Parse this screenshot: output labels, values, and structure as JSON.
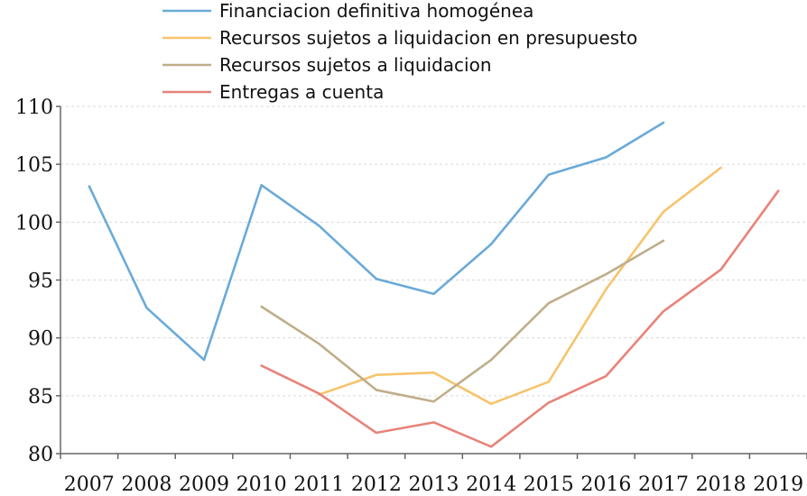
{
  "chart_data": {
    "type": "line",
    "title": "",
    "xlabel": "",
    "ylabel": "",
    "x": [
      "2007",
      "2008",
      "2009",
      "2010",
      "2011",
      "2012",
      "2013",
      "2014",
      "2015",
      "2016",
      "2017",
      "2018",
      "2019"
    ],
    "ylim": [
      80,
      110
    ],
    "yticks": [
      "80",
      "85",
      "90",
      "95",
      "100",
      "105",
      "110"
    ],
    "grid": "horizontal-dashed",
    "legend_position": "top-center",
    "series": [
      {
        "name": "Financiacion definitiva homogénea",
        "color": "#6aaad8",
        "values": [
          103.1,
          92.6,
          88.1,
          103.2,
          99.7,
          95.1,
          93.8,
          98.1,
          104.1,
          105.6,
          108.6,
          null,
          null
        ]
      },
      {
        "name": "Recursos sujetos a liquidacion en presupuesto",
        "color": "#f7c36b",
        "values": [
          null,
          null,
          null,
          null,
          85.1,
          86.8,
          87.0,
          84.3,
          86.2,
          94.2,
          100.9,
          104.7,
          null
        ]
      },
      {
        "name": "Recursos sujetos a liquidacion",
        "color": "#bfae8a",
        "values": [
          null,
          null,
          null,
          92.7,
          89.5,
          85.5,
          84.5,
          88.1,
          93.0,
          95.5,
          98.4,
          null,
          null
        ]
      },
      {
        "name": "Entregas a cuenta",
        "color": "#e8837a",
        "values": [
          null,
          null,
          null,
          87.6,
          85.2,
          81.8,
          82.7,
          80.6,
          84.4,
          86.7,
          92.3,
          95.9,
          102.7
        ]
      }
    ]
  }
}
